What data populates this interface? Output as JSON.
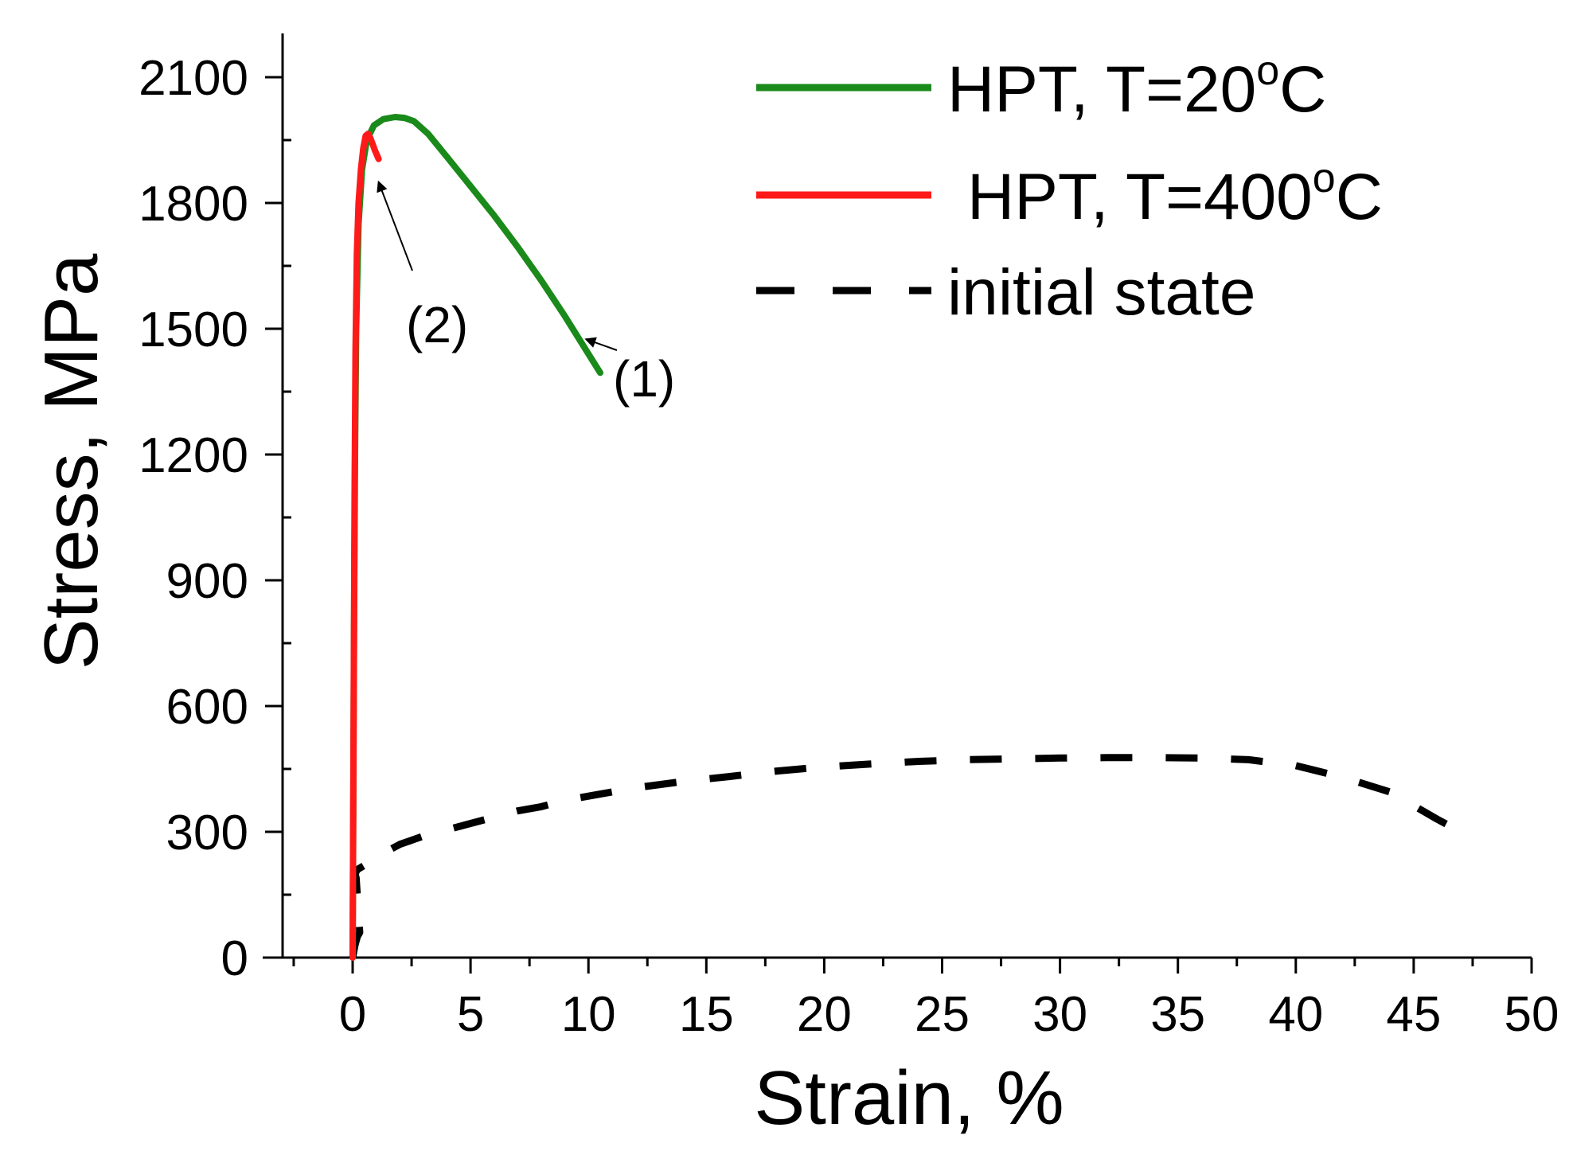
{
  "chart_data": {
    "type": "line",
    "title": "",
    "xlabel": "Strain, %",
    "ylabel": "Stress, MPa",
    "xlim": [
      -2.5,
      50
    ],
    "ylim": [
      0,
      2200
    ],
    "xticks": [
      0,
      5,
      10,
      15,
      20,
      25,
      30,
      35,
      40,
      45,
      50
    ],
    "yticks": [
      0,
      300,
      600,
      900,
      1200,
      1500,
      1800,
      2100
    ],
    "xtick_labels": [
      "0",
      "5",
      "10",
      "15",
      "20",
      "25",
      "30",
      "35",
      "40",
      "45",
      "50"
    ],
    "ytick_labels": [
      "0",
      "300",
      "600",
      "900",
      "1200",
      "1500",
      "1800",
      "2100"
    ],
    "grid": false,
    "legend_position": "top-right",
    "series": [
      {
        "name": "HPT, T=20°C",
        "legend_main": "HPT, T=20",
        "legend_sup": "o",
        "legend_tail": "C",
        "color": "#1a8a1a",
        "style": "solid",
        "x": [
          0,
          0.03,
          0.06,
          0.1,
          0.15,
          0.25,
          0.4,
          0.6,
          0.9,
          1.3,
          1.8,
          2.2,
          2.6,
          3.2,
          4.0,
          5.0,
          6.0,
          7.0,
          8.0,
          9.0,
          10.0,
          10.5
        ],
        "y": [
          0,
          400,
          800,
          1200,
          1500,
          1750,
          1880,
          1950,
          1985,
          2000,
          2005,
          2003,
          1995,
          1965,
          1910,
          1840,
          1770,
          1695,
          1615,
          1530,
          1440,
          1395
        ]
      },
      {
        "name": "HPT, T=400°C",
        "legend_main": "HPT, T=400",
        "legend_sup": "o",
        "legend_tail": "C",
        "color": "#ff1a1a",
        "style": "solid",
        "x": [
          0,
          0.02,
          0.05,
          0.08,
          0.12,
          0.18,
          0.25,
          0.35,
          0.45,
          0.55,
          0.65,
          0.75,
          0.85,
          0.95,
          1.1
        ],
        "y": [
          0,
          300,
          700,
          1100,
          1450,
          1680,
          1800,
          1880,
          1930,
          1960,
          1965,
          1955,
          1940,
          1925,
          1905
        ]
      },
      {
        "name": "initial state",
        "color": "#000000",
        "style": "dashed",
        "x": [
          0,
          0.1,
          0.2,
          0.3,
          0.15,
          0.1,
          0.2,
          0.5,
          1,
          2,
          3,
          4,
          5,
          6,
          7,
          8,
          9,
          10,
          12,
          14,
          16,
          18,
          20,
          22,
          24,
          26,
          28,
          30,
          32,
          34,
          36,
          38,
          40,
          42,
          44,
          46,
          47.5
        ],
        "y": [
          0,
          30,
          50,
          60,
          190,
          200,
          210,
          220,
          240,
          270,
          290,
          305,
          320,
          335,
          350,
          360,
          375,
          385,
          405,
          420,
          432,
          445,
          455,
          462,
          468,
          472,
          474,
          476,
          477,
          477,
          476,
          472,
          458,
          430,
          395,
          330,
          285
        ]
      }
    ],
    "annotations": [
      {
        "text": "(1)",
        "target_x": 9.9,
        "target_y": 1475
      },
      {
        "text": "(2)",
        "target_x": 1.1,
        "target_y": 1850
      }
    ]
  }
}
